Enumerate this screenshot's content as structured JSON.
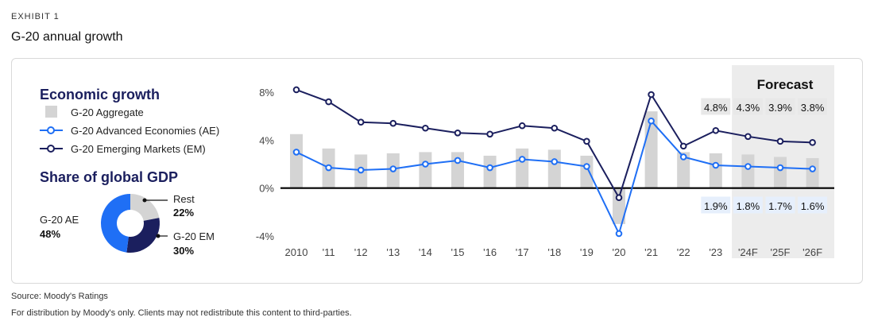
{
  "header": {
    "exhibit_label": "EXHIBIT 1",
    "title": "G-20 annual growth"
  },
  "footer": {
    "source": "Source: Moody's Ratings",
    "distribution": "For distribution by Moody's only. Clients may not redistribute this content to third-parties."
  },
  "colors": {
    "aggregate_bar": "#d4d4d4",
    "ae_line": "#1f6ff5",
    "em_line": "#1b1f5e",
    "forecast_shade": "#ececec",
    "callout_em": "#e8e8e8",
    "callout_ae": "#e6effc"
  },
  "legend": {
    "title": "Economic growth",
    "items": [
      {
        "label": "G-20 Aggregate",
        "kind": "bar"
      },
      {
        "label": "G-20 Advanced Economies (AE)",
        "kind": "ae"
      },
      {
        "label": "G-20 Emerging Markets (EM)",
        "kind": "em"
      }
    ]
  },
  "share": {
    "title": "Share of global GDP",
    "slices": [
      {
        "name": "G-20 AE",
        "value": 48,
        "label": "48%",
        "color": "#1f6ff5"
      },
      {
        "name": "G-20 EM",
        "value": 30,
        "label": "30%",
        "color": "#1b1f5e"
      },
      {
        "name": "Rest",
        "value": 22,
        "label": "22%",
        "color": "#d4d4d4"
      }
    ]
  },
  "chart_data": {
    "type": "line",
    "categories": [
      "2010",
      "'11",
      "'12",
      "'13",
      "'14",
      "'15",
      "'16",
      "'17",
      "'18",
      "'19",
      "'20",
      "'21",
      "'22",
      "'23",
      "'24F",
      "'25F",
      "'26F"
    ],
    "ylim": [
      -4,
      8
    ],
    "yticks": [
      8,
      4,
      0,
      -4
    ],
    "ytick_labels": [
      "8%",
      "4%",
      "0%",
      "-4%"
    ],
    "forecast_label": "Forecast",
    "forecast_start": "'23",
    "series": [
      {
        "name": "G-20 Aggregate",
        "kind": "bar",
        "values": [
          4.5,
          3.3,
          2.8,
          2.9,
          3.0,
          3.0,
          2.7,
          3.3,
          3.2,
          2.7,
          -3.0,
          6.4,
          3.0,
          2.9,
          2.8,
          2.6,
          2.5
        ]
      },
      {
        "name": "G-20 Advanced Economies (AE)",
        "kind": "ae",
        "values": [
          3.0,
          1.7,
          1.5,
          1.6,
          2.0,
          2.3,
          1.7,
          2.4,
          2.2,
          1.8,
          -3.8,
          5.6,
          2.6,
          1.9,
          1.8,
          1.7,
          1.6
        ]
      },
      {
        "name": "G-20 Emerging Markets (EM)",
        "kind": "em",
        "values": [
          8.2,
          7.2,
          5.5,
          5.4,
          5.0,
          4.6,
          4.5,
          5.2,
          5.0,
          3.9,
          -0.8,
          7.8,
          3.5,
          4.8,
          4.3,
          3.9,
          3.8
        ]
      }
    ],
    "annotations": {
      "em": [
        {
          "label": "4.8%",
          "index": 13
        },
        {
          "label": "4.3%",
          "index": 14
        },
        {
          "label": "3.9%",
          "index": 15
        },
        {
          "label": "3.8%",
          "index": 16
        }
      ],
      "ae": [
        {
          "label": "1.9%",
          "index": 13
        },
        {
          "label": "1.8%",
          "index": 14
        },
        {
          "label": "1.7%",
          "index": 15
        },
        {
          "label": "1.6%",
          "index": 16
        }
      ]
    }
  }
}
